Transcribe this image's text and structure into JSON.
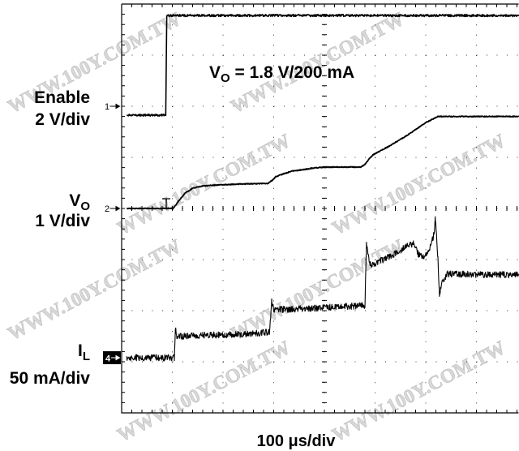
{
  "watermark": "WWW.100Y.COM.TW",
  "chart_data": {
    "type": "line",
    "annotation": {
      "main": "V",
      "sub": "O",
      "text": " = 1.8 V/200 mA"
    },
    "xlabel": "100 μs/div",
    "xlim": [
      0,
      783
    ],
    "grid": true,
    "series": [
      {
        "channel": "1",
        "label": {
          "main": "Enable"
        },
        "scale": "2 V/div",
        "points": [
          [
            10,
            0
          ],
          [
            87,
            0
          ],
          [
            89,
            3.9
          ],
          [
            783,
            3.9
          ]
        ]
      },
      {
        "channel": "2",
        "label": {
          "main": "V",
          "sub": "O"
        },
        "scale": "1 V/div",
        "points": [
          [
            10,
            0
          ],
          [
            101,
            0
          ],
          [
            104,
            0.03
          ],
          [
            112,
            0.14
          ],
          [
            125,
            0.3
          ],
          [
            141,
            0.4
          ],
          [
            160,
            0.44
          ],
          [
            192,
            0.46
          ],
          [
            240,
            0.48
          ],
          [
            288,
            0.49
          ],
          [
            296,
            0.54
          ],
          [
            304,
            0.62
          ],
          [
            320,
            0.68
          ],
          [
            336,
            0.73
          ],
          [
            360,
            0.76
          ],
          [
            376,
            0.79
          ],
          [
            400,
            0.81
          ],
          [
            472,
            0.81
          ],
          [
            480,
            0.86
          ],
          [
            488,
            0.97
          ],
          [
            496,
            1.05
          ],
          [
            528,
            1.22
          ],
          [
            560,
            1.41
          ],
          [
            584,
            1.57
          ],
          [
            600,
            1.68
          ],
          [
            616,
            1.76
          ],
          [
            624,
            1.8
          ],
          [
            783,
            1.8
          ]
        ]
      },
      {
        "channel": "4",
        "label": {
          "main": "I",
          "sub": "L"
        },
        "scale": "50 mA/div",
        "points": [
          [
            10,
            0
          ],
          [
            104,
            0
          ],
          [
            106,
            29
          ],
          [
            109,
            20
          ],
          [
            114,
            21
          ],
          [
            160,
            22
          ],
          [
            240,
            23
          ],
          [
            292,
            25
          ],
          [
            296,
            55
          ],
          [
            300,
            47
          ],
          [
            360,
            48
          ],
          [
            480,
            51
          ],
          [
            483,
            112
          ],
          [
            490,
            92
          ],
          [
            496,
            91
          ],
          [
            528,
            99
          ],
          [
            560,
            108
          ],
          [
            576,
            112
          ],
          [
            584,
            102
          ],
          [
            595,
            98
          ],
          [
            608,
            108
          ],
          [
            616,
            120
          ],
          [
            619,
            136
          ],
          [
            624,
            96
          ],
          [
            627,
            63
          ],
          [
            634,
            76
          ],
          [
            643,
            82
          ],
          [
            783,
            81
          ]
        ]
      }
    ]
  }
}
